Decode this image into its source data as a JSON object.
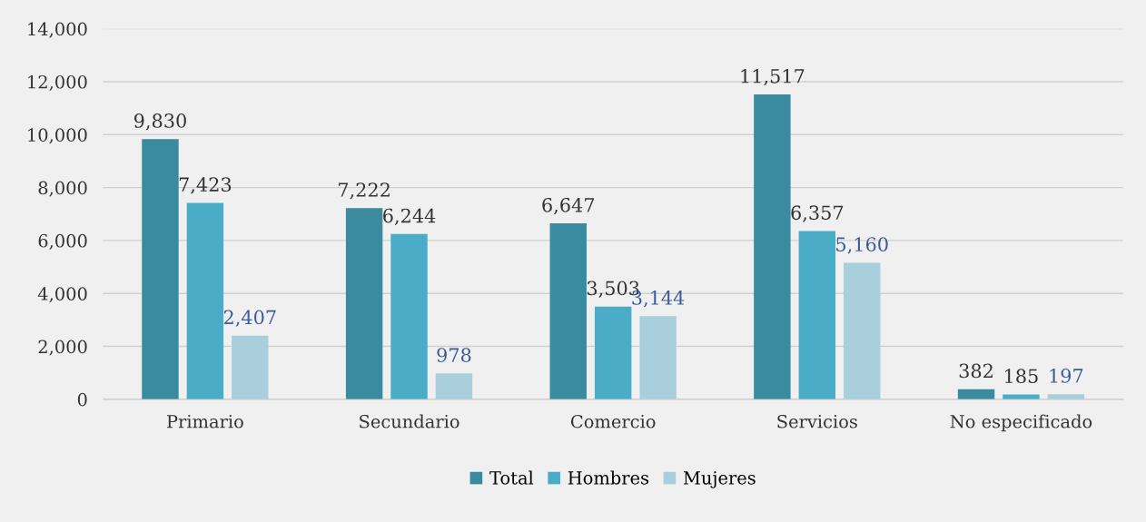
{
  "chart_data": {
    "type": "bar",
    "categories": [
      "Primario",
      "Secundario",
      "Comercio",
      "Servicios",
      "No especificado"
    ],
    "series": [
      {
        "name": "Total",
        "color": "#3a8aa0",
        "values": [
          9830,
          7222,
          6647,
          11517,
          382
        ],
        "value_labels": [
          "9,830",
          "7,222",
          "6,647",
          "11,517",
          "382"
        ]
      },
      {
        "name": "Hombres",
        "color": "#4aacc6",
        "values": [
          7423,
          6244,
          3503,
          6357,
          185
        ],
        "value_labels": [
          "7,423",
          "6,244",
          "3,503",
          "6,357",
          "185"
        ]
      },
      {
        "name": "Mujeres",
        "color": "#a9cfdc",
        "values": [
          2407,
          978,
          3144,
          5160,
          197
        ],
        "value_labels": [
          "2,407",
          "978",
          "3,144",
          "5,160",
          "197"
        ]
      }
    ],
    "ylim": [
      0,
      14000
    ],
    "yticks": [
      0,
      {
        "value": 2000,
        "label": "2,000"
      },
      {
        "value": 4000,
        "label": "4,000"
      },
      {
        "value": 6000,
        "label": "6,000"
      },
      {
        "value": 8000,
        "label": "8,000"
      },
      {
        "value": 10000,
        "label": "10,000"
      },
      {
        "value": 12000,
        "label": "12,000"
      },
      {
        "value": 14000,
        "label": "14,000"
      }
    ],
    "grid": "y",
    "legend": "bottom"
  }
}
